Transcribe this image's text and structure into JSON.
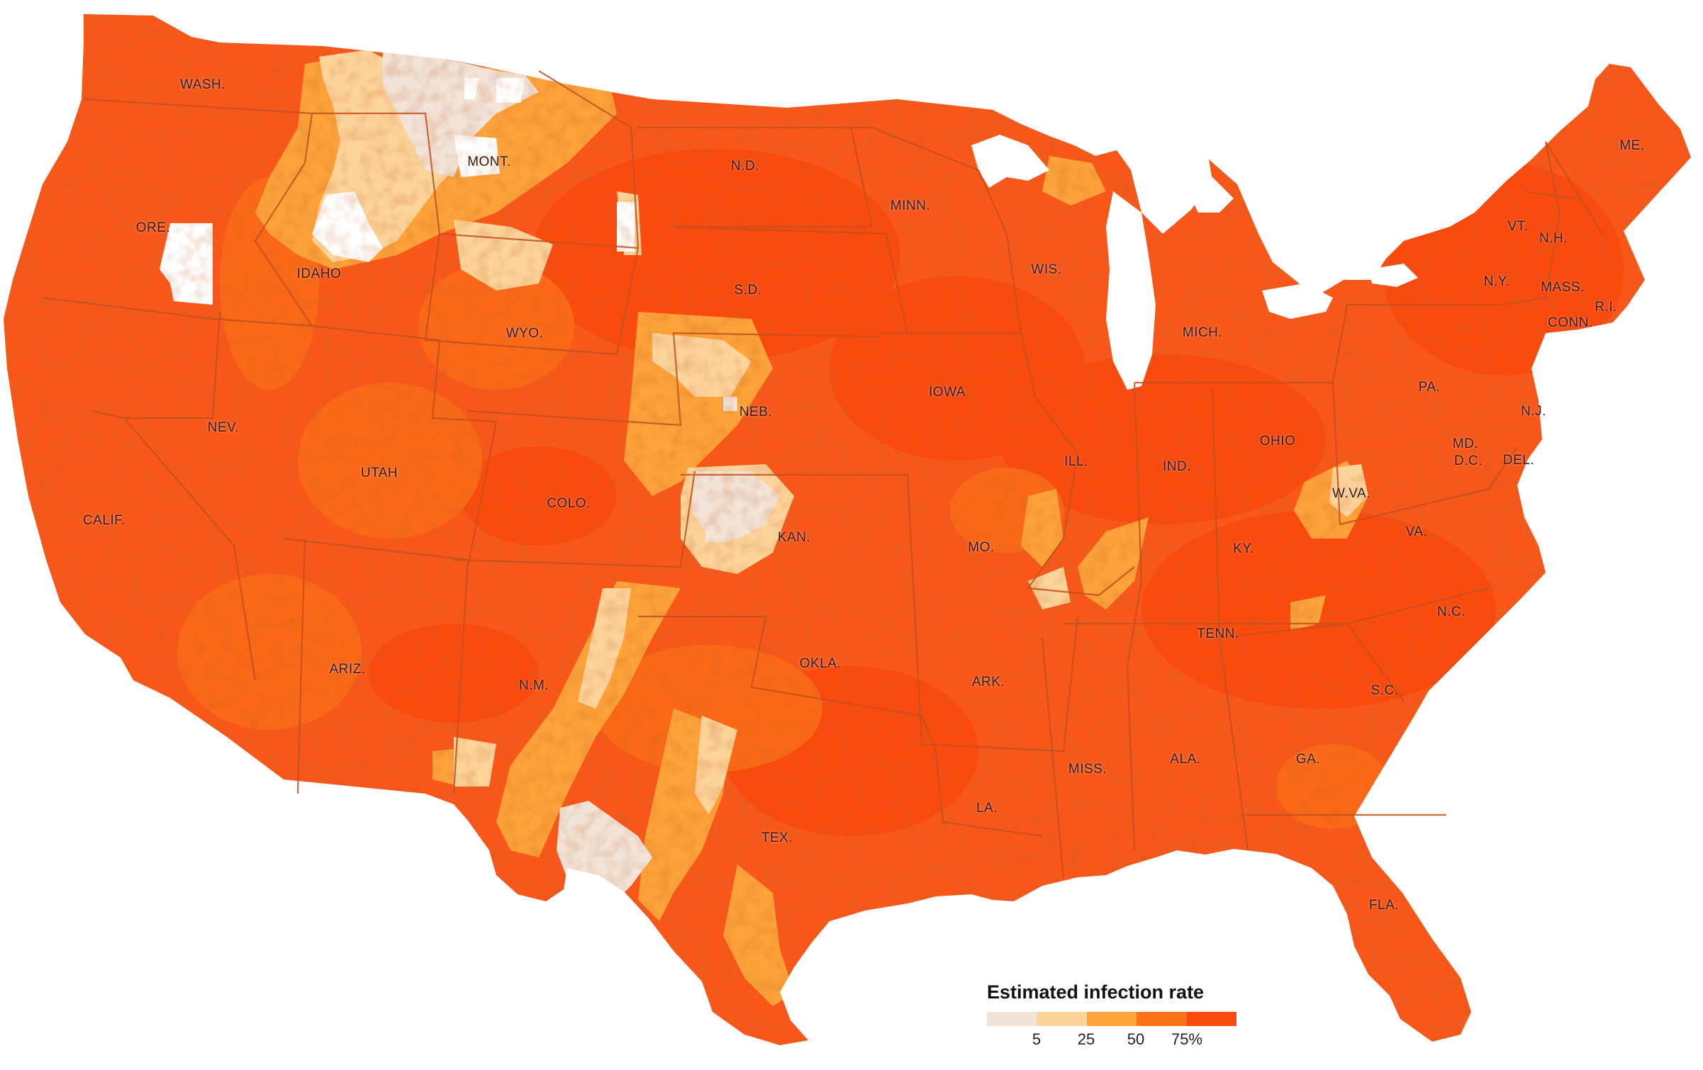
{
  "states": [
    {
      "id": "wash",
      "label": "WASH."
    },
    {
      "id": "ore",
      "label": "ORE."
    },
    {
      "id": "calif",
      "label": "CALIF."
    },
    {
      "id": "idaho",
      "label": "IDAHO"
    },
    {
      "id": "nev",
      "label": "NEV."
    },
    {
      "id": "mont",
      "label": "MONT."
    },
    {
      "id": "wyo",
      "label": "WYO."
    },
    {
      "id": "utah",
      "label": "UTAH"
    },
    {
      "id": "ariz",
      "label": "ARIZ."
    },
    {
      "id": "colo",
      "label": "COLO."
    },
    {
      "id": "nm",
      "label": "N.M."
    },
    {
      "id": "nd",
      "label": "N.D."
    },
    {
      "id": "sd",
      "label": "S.D."
    },
    {
      "id": "neb",
      "label": "NEB."
    },
    {
      "id": "kan",
      "label": "KAN."
    },
    {
      "id": "okla",
      "label": "OKLA."
    },
    {
      "id": "tex",
      "label": "TEX."
    },
    {
      "id": "minn",
      "label": "MINN."
    },
    {
      "id": "iowa",
      "label": "IOWA"
    },
    {
      "id": "mo",
      "label": "MO."
    },
    {
      "id": "ark",
      "label": "ARK."
    },
    {
      "id": "la",
      "label": "LA."
    },
    {
      "id": "wis",
      "label": "WIS."
    },
    {
      "id": "ill",
      "label": "ILL."
    },
    {
      "id": "mich",
      "label": "MICH."
    },
    {
      "id": "ind",
      "label": "IND."
    },
    {
      "id": "ohio",
      "label": "OHIO"
    },
    {
      "id": "ky",
      "label": "KY."
    },
    {
      "id": "tenn",
      "label": "TENN."
    },
    {
      "id": "miss",
      "label": "MISS."
    },
    {
      "id": "ala",
      "label": "ALA."
    },
    {
      "id": "ga",
      "label": "GA."
    },
    {
      "id": "fla",
      "label": "FLA."
    },
    {
      "id": "sc",
      "label": "S.C."
    },
    {
      "id": "nc",
      "label": "N.C."
    },
    {
      "id": "va",
      "label": "VA."
    },
    {
      "id": "wva",
      "label": "W.VA."
    },
    {
      "id": "pa",
      "label": "PA."
    },
    {
      "id": "ny",
      "label": "N.Y."
    },
    {
      "id": "vt",
      "label": "VT."
    },
    {
      "id": "nh",
      "label": "N.H."
    },
    {
      "id": "me",
      "label": "ME."
    },
    {
      "id": "mass",
      "label": "MASS."
    },
    {
      "id": "ri",
      "label": "R.I."
    },
    {
      "id": "conn",
      "label": "CONN."
    },
    {
      "id": "nj",
      "label": "N.J."
    },
    {
      "id": "md",
      "label": "MD."
    },
    {
      "id": "dc",
      "label": "D.C."
    },
    {
      "id": "del",
      "label": "DEL."
    }
  ],
  "legend": {
    "title": "Estimated infection rate",
    "bins": [
      "#f2e4d8",
      "#fdd49a",
      "#fda33a",
      "#fa7219",
      "#fb4a0e"
    ],
    "ticks": [
      "5",
      "25",
      "50",
      "75%"
    ]
  },
  "colors": {
    "main": "#f9581a",
    "light": "#fdd49a",
    "pale": "#f2e4d8",
    "mid": "#fda33a",
    "border": "#c2501e",
    "no_data": "#ffffff"
  }
}
